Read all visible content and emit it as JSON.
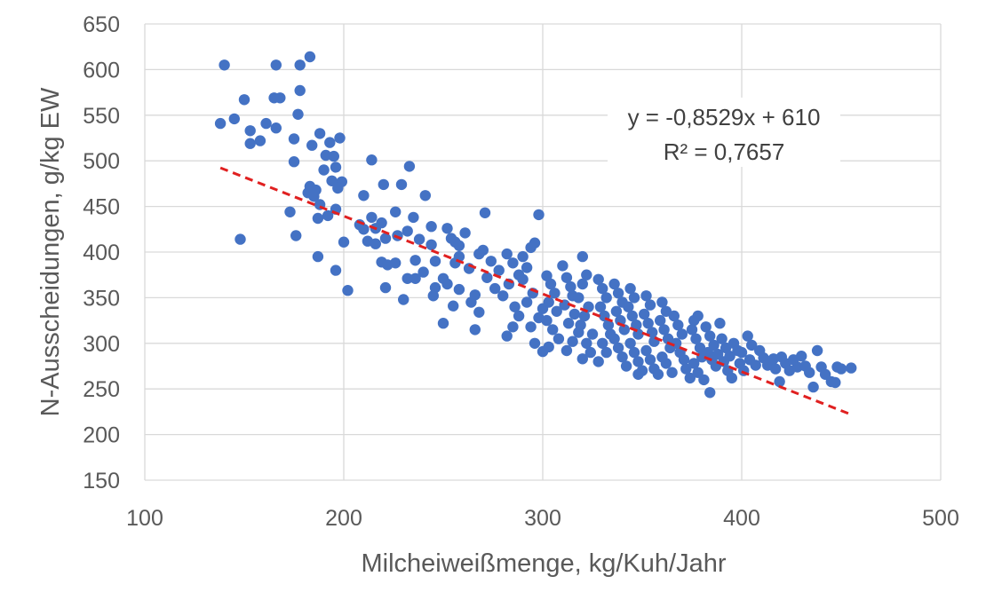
{
  "chart_data": {
    "type": "scatter",
    "xlabel": "Milcheiweißmenge, kg/Kuh/Jahr",
    "ylabel": "N-Ausscheidungen, g/kg EW",
    "xlim": [
      100,
      500
    ],
    "ylim": [
      150,
      650
    ],
    "xticks": [
      100,
      200,
      300,
      400,
      500
    ],
    "yticks": [
      150,
      200,
      250,
      300,
      350,
      400,
      450,
      500,
      550,
      600,
      650
    ],
    "grid": "horizontal",
    "point_color": "#4472C4",
    "trendline": {
      "color": "#E02020",
      "slope": -0.8529,
      "intercept": 610,
      "x_range": [
        138,
        456
      ],
      "equation": "y = -0,8529x + 610",
      "r_squared": "R² = 0,7657"
    },
    "points": [
      [
        140,
        605
      ],
      [
        166,
        605
      ],
      [
        178,
        605
      ],
      [
        183,
        614
      ],
      [
        178,
        577
      ],
      [
        150,
        567
      ],
      [
        168,
        569
      ],
      [
        165,
        569
      ],
      [
        177,
        551
      ],
      [
        138,
        541
      ],
      [
        145,
        546
      ],
      [
        161,
        541
      ],
      [
        153,
        533
      ],
      [
        166,
        536
      ],
      [
        153,
        519
      ],
      [
        158,
        522
      ],
      [
        175,
        524
      ],
      [
        188,
        530
      ],
      [
        198,
        525
      ],
      [
        193,
        520
      ],
      [
        184,
        517
      ],
      [
        191,
        506
      ],
      [
        195,
        505
      ],
      [
        190,
        490
      ],
      [
        196,
        493
      ],
      [
        175,
        499
      ],
      [
        199,
        477
      ],
      [
        194,
        478
      ],
      [
        183,
        472
      ],
      [
        186,
        468
      ],
      [
        197,
        470
      ],
      [
        185,
        461
      ],
      [
        182,
        465
      ],
      [
        188,
        452
      ],
      [
        196,
        447
      ],
      [
        192,
        440
      ],
      [
        173,
        444
      ],
      [
        187,
        437
      ],
      [
        176,
        418
      ],
      [
        148,
        414
      ],
      [
        200,
        411
      ],
      [
        187,
        395
      ],
      [
        196,
        380
      ],
      [
        202,
        358
      ],
      [
        214,
        501
      ],
      [
        233,
        494
      ],
      [
        241,
        462
      ],
      [
        220,
        474
      ],
      [
        229,
        474
      ],
      [
        210,
        462
      ],
      [
        226,
        444
      ],
      [
        235,
        438
      ],
      [
        214,
        438
      ],
      [
        219,
        432
      ],
      [
        216,
        426
      ],
      [
        210,
        425
      ],
      [
        208,
        430
      ],
      [
        221,
        415
      ],
      [
        227,
        418
      ],
      [
        216,
        409
      ],
      [
        212,
        412
      ],
      [
        232,
        423
      ],
      [
        238,
        414
      ],
      [
        244,
        408
      ],
      [
        244,
        428
      ],
      [
        252,
        426
      ],
      [
        254,
        415
      ],
      [
        256,
        411
      ],
      [
        261,
        421
      ],
      [
        271,
        443
      ],
      [
        258,
        407
      ],
      [
        219,
        389
      ],
      [
        226,
        388
      ],
      [
        222,
        386
      ],
      [
        232,
        371
      ],
      [
        236,
        371
      ],
      [
        240,
        378
      ],
      [
        236,
        391
      ],
      [
        221,
        361
      ],
      [
        246,
        361
      ],
      [
        250,
        371
      ],
      [
        246,
        390
      ],
      [
        230,
        348
      ],
      [
        245,
        352
      ],
      [
        250,
        322
      ],
      [
        255,
        341
      ],
      [
        252,
        365
      ],
      [
        258,
        359
      ],
      [
        256,
        388
      ],
      [
        258,
        395
      ],
      [
        264,
        345
      ],
      [
        268,
        334
      ],
      [
        266,
        315
      ],
      [
        263,
        382
      ],
      [
        266,
        353
      ],
      [
        268,
        398
      ],
      [
        270,
        402
      ],
      [
        274,
        390
      ],
      [
        278,
        380
      ],
      [
        272,
        372
      ],
      [
        276,
        360
      ],
      [
        282,
        398
      ],
      [
        285,
        388
      ],
      [
        288,
        375
      ],
      [
        283,
        365
      ],
      [
        280,
        352
      ],
      [
        286,
        340
      ],
      [
        290,
        395
      ],
      [
        294,
        405
      ],
      [
        296,
        410
      ],
      [
        298,
        441
      ],
      [
        292,
        383
      ],
      [
        290,
        370
      ],
      [
        295,
        355
      ],
      [
        292,
        345
      ],
      [
        288,
        330
      ],
      [
        285,
        318
      ],
      [
        282,
        308
      ],
      [
        294,
        318
      ],
      [
        298,
        328
      ],
      [
        300,
        338
      ],
      [
        296,
        300
      ],
      [
        300,
        291
      ],
      [
        302,
        374
      ],
      [
        304,
        365
      ],
      [
        306,
        355
      ],
      [
        303,
        345
      ],
      [
        307,
        335
      ],
      [
        302,
        325
      ],
      [
        305,
        315
      ],
      [
        308,
        305
      ],
      [
        303,
        296
      ],
      [
        310,
        385
      ],
      [
        312,
        372
      ],
      [
        314,
        362
      ],
      [
        315,
        352
      ],
      [
        311,
        342
      ],
      [
        316,
        332
      ],
      [
        313,
        322
      ],
      [
        318,
        312
      ],
      [
        315,
        302
      ],
      [
        312,
        292
      ],
      [
        320,
        395
      ],
      [
        322,
        375
      ],
      [
        320,
        365
      ],
      [
        318,
        350
      ],
      [
        323,
        340
      ],
      [
        321,
        330
      ],
      [
        319,
        320
      ],
      [
        325,
        310
      ],
      [
        322,
        300
      ],
      [
        324,
        290
      ],
      [
        320,
        283
      ],
      [
        328,
        370
      ],
      [
        330,
        360
      ],
      [
        332,
        350
      ],
      [
        329,
        340
      ],
      [
        331,
        330
      ],
      [
        333,
        320
      ],
      [
        334,
        310
      ],
      [
        330,
        300
      ],
      [
        332,
        290
      ],
      [
        328,
        280
      ],
      [
        336,
        365
      ],
      [
        338,
        355
      ],
      [
        340,
        345
      ],
      [
        337,
        335
      ],
      [
        339,
        325
      ],
      [
        341,
        315
      ],
      [
        336,
        305
      ],
      [
        338,
        295
      ],
      [
        340,
        285
      ],
      [
        342,
        275
      ],
      [
        344,
        360
      ],
      [
        346,
        350
      ],
      [
        343,
        340
      ],
      [
        345,
        330
      ],
      [
        347,
        320
      ],
      [
        348,
        310
      ],
      [
        344,
        300
      ],
      [
        346,
        290
      ],
      [
        348,
        280
      ],
      [
        350,
        270
      ],
      [
        352,
        352
      ],
      [
        354,
        342
      ],
      [
        351,
        332
      ],
      [
        353,
        322
      ],
      [
        355,
        312
      ],
      [
        356,
        302
      ],
      [
        352,
        292
      ],
      [
        354,
        282
      ],
      [
        356,
        272
      ],
      [
        358,
        266
      ],
      [
        360,
        345
      ],
      [
        362,
        335
      ],
      [
        359,
        325
      ],
      [
        361,
        315
      ],
      [
        363,
        305
      ],
      [
        364,
        295
      ],
      [
        360,
        285
      ],
      [
        362,
        278
      ],
      [
        365,
        268
      ],
      [
        348,
        266
      ],
      [
        366,
        330
      ],
      [
        368,
        320
      ],
      [
        370,
        310
      ],
      [
        367,
        300
      ],
      [
        369,
        290
      ],
      [
        371,
        282
      ],
      [
        372,
        272
      ],
      [
        374,
        262
      ],
      [
        376,
        325
      ],
      [
        378,
        330
      ],
      [
        375,
        315
      ],
      [
        377,
        305
      ],
      [
        379,
        295
      ],
      [
        380,
        285
      ],
      [
        376,
        278
      ],
      [
        378,
        268
      ],
      [
        381,
        260
      ],
      [
        384,
        246
      ],
      [
        382,
        318
      ],
      [
        384,
        308
      ],
      [
        386,
        298
      ],
      [
        383,
        290
      ],
      [
        385,
        282
      ],
      [
        387,
        275
      ],
      [
        389,
        322
      ],
      [
        390,
        305
      ],
      [
        392,
        295
      ],
      [
        388,
        288
      ],
      [
        391,
        280
      ],
      [
        393,
        270
      ],
      [
        395,
        262
      ],
      [
        396,
        300
      ],
      [
        398,
        292
      ],
      [
        394,
        286
      ],
      [
        399,
        278
      ],
      [
        401,
        270
      ],
      [
        403,
        308
      ],
      [
        405,
        298
      ],
      [
        400,
        290
      ],
      [
        404,
        282
      ],
      [
        407,
        276
      ],
      [
        409,
        292
      ],
      [
        411,
        284
      ],
      [
        413,
        276
      ],
      [
        415,
        280
      ],
      [
        417,
        272
      ],
      [
        419,
        258
      ],
      [
        422,
        278
      ],
      [
        424,
        270
      ],
      [
        426,
        282
      ],
      [
        428,
        274
      ],
      [
        430,
        286
      ],
      [
        432,
        275
      ],
      [
        434,
        268
      ],
      [
        436,
        252
      ],
      [
        438,
        292
      ],
      [
        440,
        274
      ],
      [
        442,
        266
      ],
      [
        445,
        258
      ],
      [
        447,
        257
      ],
      [
        448,
        274
      ],
      [
        450,
        272
      ],
      [
        455,
        273
      ],
      [
        416,
        283
      ],
      [
        420,
        285
      ]
    ]
  }
}
